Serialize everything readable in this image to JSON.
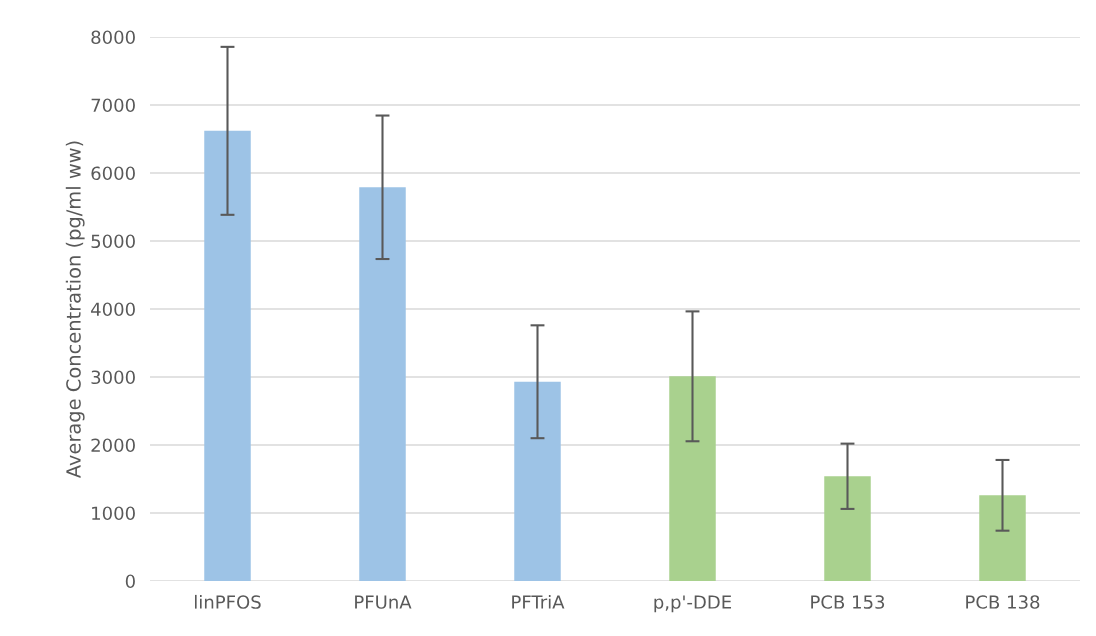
{
  "chart_data": {
    "type": "bar",
    "ylabel": "Average Concentration (pg/ml ww)",
    "categories": [
      "linPFOS",
      "PFUnA",
      "PFTriA",
      "p,p'-DDE",
      "PCB 153",
      "PCB 138"
    ],
    "values": [
      6620,
      5790,
      2930,
      3010,
      1540,
      1260
    ],
    "errors": [
      1235,
      1055,
      830,
      955,
      480,
      520
    ],
    "colors": [
      "#9dc3e6",
      "#9dc3e6",
      "#9dc3e6",
      "#a9d18e",
      "#a9d18e",
      "#a9d18e"
    ],
    "ylim": [
      0,
      8000
    ],
    "yticks": [
      0,
      1000,
      2000,
      3000,
      4000,
      5000,
      6000,
      7000,
      8000
    ],
    "grid": "y"
  }
}
